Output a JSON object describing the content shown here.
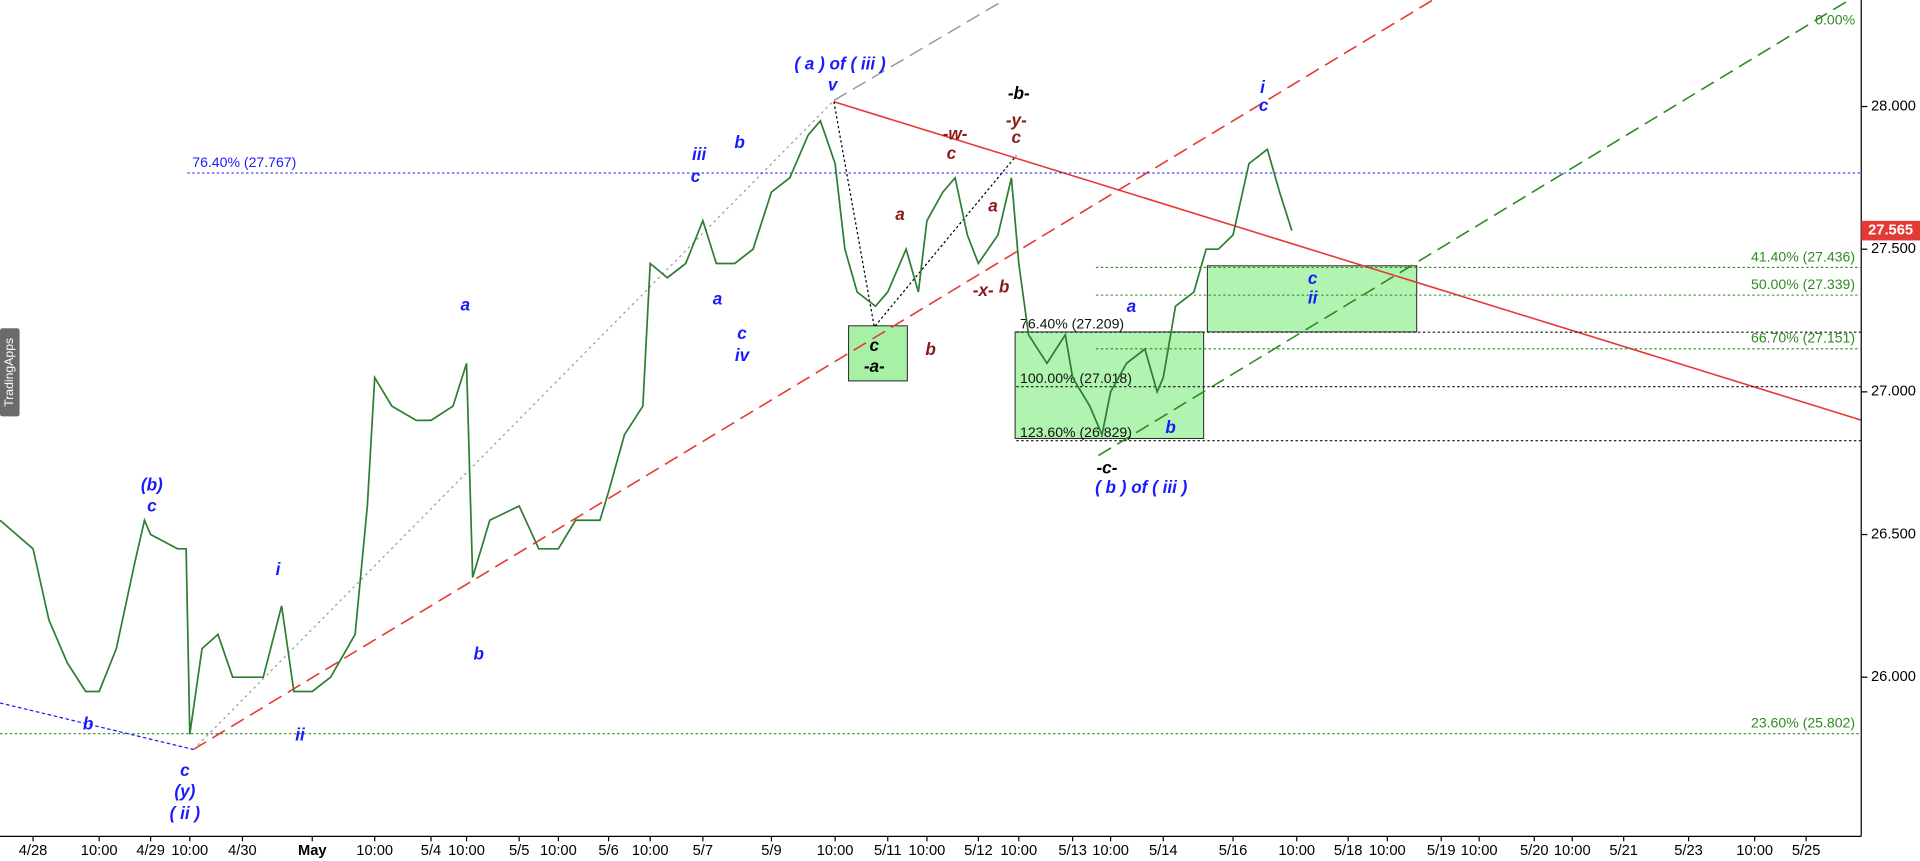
{
  "chart_data": {
    "type": "line",
    "categories": [
      null,
      "4/28",
      null,
      null,
      null,
      "10:00",
      null,
      null,
      null,
      "4/29",
      null,
      null,
      "10:00",
      null,
      null,
      null,
      "4/30",
      null,
      null,
      null,
      "May",
      null,
      null,
      null,
      "10:00",
      null,
      null,
      "5/4",
      null,
      "10:00",
      null,
      null,
      "5/5",
      null,
      "10:00",
      null,
      null,
      "5/6",
      null,
      null,
      "10:00",
      null,
      null,
      "5/7",
      null,
      null,
      null,
      "5/9",
      null,
      null,
      null,
      "10:00",
      null,
      null,
      null,
      "5/11",
      null,
      null,
      "10:00",
      null,
      null,
      null,
      "5/12",
      null,
      null,
      "10:00",
      null,
      null,
      null,
      "5/13",
      null,
      null,
      "10:00",
      null,
      null,
      null,
      "5/14",
      null,
      null,
      null,
      null,
      "5/16",
      null,
      null,
      null,
      null,
      "10:00",
      "5/18",
      "10:00",
      "5/19",
      "10:00",
      "5/20",
      "10:00",
      "5/21",
      "5/23",
      "10:00",
      "5/25"
    ],
    "series": [
      {
        "name": null,
        "color": "#2e7d32",
        "values": [
          26.55,
          26.45,
          26.2,
          26.05,
          25.95,
          25.95,
          26.1,
          26.4,
          26.55,
          26.5,
          26.45,
          26.45,
          25.8,
          26.1,
          26.15,
          26.0,
          26.0,
          26.0,
          26.25,
          25.95,
          25.95,
          26.0,
          26.15,
          26.6,
          27.05,
          26.95,
          26.9,
          26.9,
          26.95,
          27.1,
          26.35,
          26.55,
          26.6,
          26.45,
          26.45,
          26.55,
          26.55,
          26.65,
          26.85,
          26.95,
          27.45,
          27.4,
          27.45,
          27.6,
          27.45,
          27.45,
          27.5,
          27.7,
          27.75,
          27.9,
          27.95,
          27.8,
          27.5,
          27.35,
          27.3,
          27.35,
          27.5,
          27.35,
          27.6,
          27.7,
          27.75,
          27.55,
          27.45,
          27.55,
          27.75,
          27.45,
          27.2,
          27.1,
          27.2,
          27.05,
          26.95,
          26.85,
          27.0,
          27.1,
          27.15,
          27.0,
          27.05,
          27.3,
          27.35,
          27.5,
          27.5,
          27.55,
          27.8,
          27.85,
          27.7,
          27.565,
          null,
          null,
          null,
          null,
          null,
          null,
          null,
          null,
          null,
          null,
          null
        ]
      }
    ],
    "ylim": [
      25.442,
      28.373
    ],
    "yticks": [
      {
        "value": 28,
        "label": "28.000"
      },
      {
        "value": 27.5,
        "label": "27.500"
      },
      {
        "value": 27,
        "label": "27.000"
      },
      {
        "value": 26.5,
        "label": "26.500"
      },
      {
        "value": 26,
        "label": "26.000"
      }
    ],
    "current_price": 27.565,
    "levels": [
      {
        "label": "76.40% (27.767)",
        "value": 27.767,
        "color": "#1a1aff"
      },
      {
        "label": "41.40% (27.436)",
        "value": 27.436,
        "color": "#2e8b22"
      },
      {
        "label": "50.00% (27.339)",
        "value": 27.339,
        "color": "#2e8b22"
      },
      {
        "label": "66.70% (27.151)",
        "value": 27.151,
        "color": "#2e8b22"
      },
      {
        "label": "23.60% (25.802)",
        "value": 25.802,
        "color": "#2e8b22"
      },
      {
        "label": "76.40% (27.209)",
        "value": 27.209,
        "color": "#111111"
      },
      {
        "label": "100.00% (27.018)",
        "value": 27.018,
        "color": "#111111"
      },
      {
        "label": "123.60% (26.829)",
        "value": 26.829,
        "color": "#111111"
      }
    ],
    "annotations": [
      {
        "text": "b",
        "color": "#1a1aff"
      },
      {
        "text": "c",
        "color": "#1a1aff"
      },
      {
        "text": "(y)",
        "color": "#1a1aff"
      },
      {
        "text": "( ii )",
        "color": "#1a1aff"
      },
      {
        "text": "(b)",
        "color": "#1a1aff"
      },
      {
        "text": "c",
        "color": "#1a1aff"
      },
      {
        "text": "i",
        "color": "#1a1aff"
      },
      {
        "text": "ii",
        "color": "#1a1aff"
      },
      {
        "text": "a",
        "color": "#1a1aff"
      },
      {
        "text": "b",
        "color": "#1a1aff"
      },
      {
        "text": "iii",
        "color": "#1a1aff"
      },
      {
        "text": "c",
        "color": "#1a1aff"
      },
      {
        "text": "b",
        "color": "#1a1aff"
      },
      {
        "text": "a",
        "color": "#1a1aff"
      },
      {
        "text": "c",
        "color": "#1a1aff"
      },
      {
        "text": "iv",
        "color": "#1a1aff"
      },
      {
        "text": "( a ) of ( iii )",
        "color": "#1a1aff"
      },
      {
        "text": "v",
        "color": "#1a1aff"
      },
      {
        "text": "a",
        "color": "#1a1aff"
      },
      {
        "text": "b",
        "color": "#1a1aff"
      },
      {
        "text": "( b ) of ( iii )",
        "color": "#1a1aff"
      },
      {
        "text": "i",
        "color": "#1a1aff"
      },
      {
        "text": "c",
        "color": "#1a1aff"
      },
      {
        "text": "c",
        "color": "#1a1aff"
      },
      {
        "text": "ii",
        "color": "#1a1aff"
      },
      {
        "text": "c",
        "color": "#000000"
      },
      {
        "text": "-a-",
        "color": "#000000"
      },
      {
        "text": "-b-",
        "color": "#000000"
      },
      {
        "text": "-c-",
        "color": "#000000"
      },
      {
        "text": "-w-",
        "color": "#8b1a1a"
      },
      {
        "text": "c",
        "color": "#8b1a1a"
      },
      {
        "text": "-y-",
        "color": "#8b1a1a"
      },
      {
        "text": "c",
        "color": "#8b1a1a"
      },
      {
        "text": "a",
        "color": "#8b1a1a"
      },
      {
        "text": "a",
        "color": "#8b1a1a"
      },
      {
        "text": "b",
        "color": "#8b1a1a"
      },
      {
        "text": "-x-",
        "color": "#8b1a1a"
      },
      {
        "text": "b",
        "color": "#8b1a1a"
      },
      {
        "text": "0.00%",
        "color": "#2e8b22"
      }
    ],
    "watermark": "TradingApps"
  }
}
